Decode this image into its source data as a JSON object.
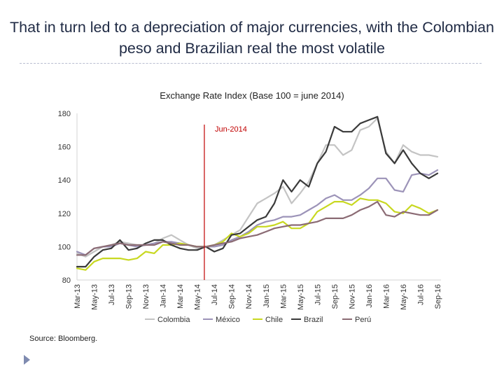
{
  "slide": {
    "title": "That in turn led to a depreciation of major currencies, with the Colombian peso and Brazilian real the most volatile",
    "source": "Source: Bloomberg."
  },
  "chart_data": {
    "type": "line",
    "title": "Exchange Rate Index (Base 100 = june 2014)",
    "xlabel": "",
    "ylabel": "",
    "ylim": [
      80,
      180
    ],
    "yticks": [
      80,
      100,
      120,
      140,
      160,
      180
    ],
    "grid": false,
    "legend_position": "bottom",
    "x": [
      "Mar-13",
      "Apr-13",
      "May-13",
      "Jun-13",
      "Jul-13",
      "Aug-13",
      "Sep-13",
      "Oct-13",
      "Nov-13",
      "Dec-13",
      "Jan-14",
      "Feb-14",
      "Mar-14",
      "Apr-14",
      "May-14",
      "Jun-14",
      "Jul-14",
      "Aug-14",
      "Sep-14",
      "Oct-14",
      "Nov-14",
      "Dec-14",
      "Jan-15",
      "Feb-15",
      "Mar-15",
      "Apr-15",
      "May-15",
      "Jun-15",
      "Jul-15",
      "Aug-15",
      "Sep-15",
      "Oct-15",
      "Nov-15",
      "Dec-15",
      "Jan-16",
      "Feb-16",
      "Mar-16",
      "Apr-16",
      "May-16",
      "Jun-16",
      "Jul-16",
      "Aug-16",
      "Sep-16"
    ],
    "xtick_labels": [
      "Mar-13",
      "May-13",
      "Jul-13",
      "Sep-13",
      "Nov-13",
      "Jan-14",
      "Mar-14",
      "May-14",
      "Jul-14",
      "Sep-14",
      "Nov-14",
      "Jan-15",
      "Mar-15",
      "May-15",
      "Jul-15",
      "Sep-15",
      "Nov-15",
      "Jan-16",
      "Mar-16",
      "May-16",
      "Jul-16",
      "Sep-16"
    ],
    "annotations": [
      {
        "label": "Jun-2014",
        "x": "Jun-14",
        "color": "#c00000"
      }
    ],
    "series": [
      {
        "name": "Colombia",
        "color": "#c4c4c4",
        "values": [
          96,
          94,
          97,
          100,
          101,
          103,
          102,
          101,
          101,
          102,
          105,
          107,
          104,
          101,
          99,
          100,
          101,
          104,
          107,
          110,
          118,
          126,
          129,
          132,
          136,
          126,
          132,
          139,
          150,
          161,
          161,
          155,
          158,
          170,
          172,
          177,
          157,
          150,
          161,
          157,
          155,
          155,
          154
        ]
      },
      {
        "name": "México",
        "color": "#9c93b8",
        "values": [
          97,
          95,
          99,
          100,
          100,
          102,
          101,
          100,
          101,
          102,
          103,
          103,
          102,
          101,
          100,
          100,
          100,
          101,
          104,
          106,
          109,
          113,
          115,
          116,
          118,
          118,
          119,
          122,
          125,
          129,
          131,
          128,
          128,
          131,
          135,
          141,
          141,
          134,
          133,
          143,
          144,
          143,
          146
        ]
      },
      {
        "name": "Chile",
        "color": "#c8d820",
        "values": [
          87,
          86,
          91,
          93,
          93,
          93,
          92,
          93,
          97,
          96,
          101,
          101,
          102,
          101,
          100,
          100,
          101,
          103,
          108,
          106,
          108,
          112,
          112,
          113,
          115,
          111,
          111,
          114,
          121,
          124,
          127,
          127,
          125,
          129,
          128,
          128,
          126,
          121,
          120,
          125,
          123,
          120,
          122
        ]
      },
      {
        "name": "Brazil",
        "color": "#3a3a3a",
        "values": [
          88,
          88,
          94,
          98,
          99,
          104,
          98,
          99,
          102,
          104,
          104,
          101,
          99,
          98,
          98,
          100,
          97,
          99,
          107,
          108,
          112,
          116,
          118,
          126,
          140,
          133,
          140,
          136,
          150,
          157,
          172,
          169,
          169,
          174,
          176,
          178,
          156,
          150,
          158,
          150,
          144,
          141,
          144
        ]
      },
      {
        "name": "Perú",
        "color": "#8b6b74",
        "values": [
          95,
          95,
          99,
          100,
          101,
          102,
          101,
          101,
          101,
          101,
          103,
          102,
          101,
          101,
          100,
          100,
          101,
          102,
          103,
          105,
          106,
          107,
          109,
          111,
          112,
          113,
          113,
          114,
          115,
          117,
          117,
          117,
          119,
          122,
          124,
          127,
          119,
          118,
          121,
          120,
          119,
          119,
          122
        ]
      }
    ]
  }
}
